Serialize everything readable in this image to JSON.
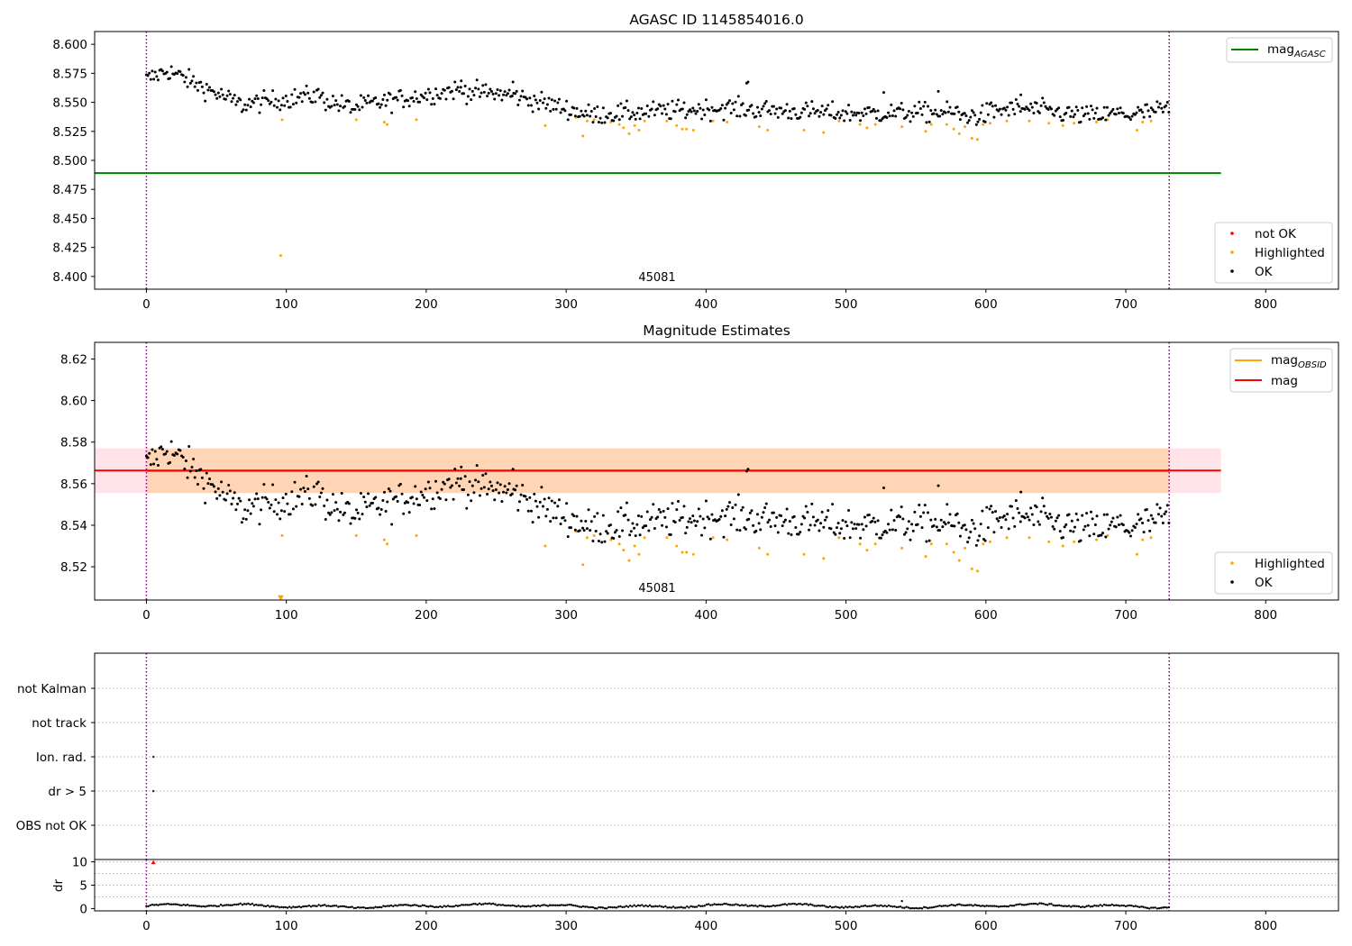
{
  "figure": {
    "title_top": "AGASC ID 1145854016.0",
    "title_mid": "Magnitude Estimates"
  },
  "chart_data": [
    {
      "type": "scatter",
      "title": "AGASC ID 1145854016.0",
      "xlim": [
        -37,
        852
      ],
      "ylim": [
        8.389,
        8.611
      ],
      "x_ticks": [
        "0",
        "100",
        "200",
        "300",
        "400",
        "500",
        "600",
        "700",
        "800"
      ],
      "y_ticks": [
        "8.400",
        "8.425",
        "8.450",
        "8.475",
        "8.500",
        "8.525",
        "8.550",
        "8.575",
        "8.600"
      ],
      "x_tick_values": [
        0,
        100,
        200,
        300,
        400,
        500,
        600,
        700,
        800
      ],
      "y_tick_values": [
        8.4,
        8.425,
        8.45,
        8.475,
        8.5,
        8.525,
        8.55,
        8.575,
        8.6
      ],
      "vlines": [
        0,
        731
      ],
      "obsid_label": "45081",
      "obsid_label_x": 365,
      "series": [
        {
          "name": "mag_AGASC",
          "style": "line",
          "color": "#008000",
          "value": 8.489,
          "x_range": [
            -37,
            768
          ]
        },
        {
          "name": "not OK",
          "style": "points",
          "color": "#ff0000",
          "points": []
        },
        {
          "name": "Highlighted",
          "style": "points",
          "color": "#ffa500",
          "points": [
            [
              96,
              8.418
            ],
            [
              97,
              8.535
            ],
            [
              150,
              8.535
            ],
            [
              170,
              8.533
            ],
            [
              172,
              8.531
            ],
            [
              193,
              8.535
            ],
            [
              285,
              8.53
            ],
            [
              307,
              8.537
            ],
            [
              312,
              8.521
            ],
            [
              315,
              8.534
            ],
            [
              320,
              8.535
            ],
            [
              332,
              8.533
            ],
            [
              338,
              8.531
            ],
            [
              341,
              8.528
            ],
            [
              345,
              8.523
            ],
            [
              349,
              8.53
            ],
            [
              352,
              8.526
            ],
            [
              356,
              8.534
            ],
            [
              372,
              8.534
            ],
            [
              379,
              8.53
            ],
            [
              383,
              8.527
            ],
            [
              386,
              8.527
            ],
            [
              391,
              8.526
            ],
            [
              405,
              8.534
            ],
            [
              415,
              8.533
            ],
            [
              438,
              8.529
            ],
            [
              444,
              8.526
            ],
            [
              470,
              8.526
            ],
            [
              484,
              8.524
            ],
            [
              495,
              8.534
            ],
            [
              510,
              8.531
            ],
            [
              515,
              8.528
            ],
            [
              521,
              8.531
            ],
            [
              525,
              8.534
            ],
            [
              540,
              8.529
            ],
            [
              557,
              8.525
            ],
            [
              561,
              8.531
            ],
            [
              572,
              8.531
            ],
            [
              577,
              8.527
            ],
            [
              581,
              8.523
            ],
            [
              585,
              8.529
            ],
            [
              590,
              8.519
            ],
            [
              594,
              8.518
            ],
            [
              598,
              8.531
            ],
            [
              603,
              8.532
            ],
            [
              615,
              8.534
            ],
            [
              631,
              8.534
            ],
            [
              645,
              8.532
            ],
            [
              655,
              8.53
            ],
            [
              663,
              8.532
            ],
            [
              679,
              8.533
            ],
            [
              687,
              8.535
            ],
            [
              708,
              8.526
            ],
            [
              712,
              8.533
            ],
            [
              718,
              8.534
            ]
          ]
        },
        {
          "name": "OK",
          "style": "points",
          "color": "#000000",
          "points": "generated"
        }
      ],
      "legend_top": [
        "mag_AGASC"
      ],
      "legend_bottom": [
        "not OK",
        "Highlighted",
        "OK"
      ],
      "legend_top_placement": "upper right",
      "legend_bottom_placement": "lower right"
    },
    {
      "type": "scatter",
      "title": "Magnitude Estimates",
      "xlim": [
        -37,
        852
      ],
      "ylim": [
        8.504,
        8.628
      ],
      "x_ticks": [
        "0",
        "100",
        "200",
        "300",
        "400",
        "500",
        "600",
        "700",
        "800"
      ],
      "y_ticks": [
        "8.52",
        "8.54",
        "8.56",
        "8.58",
        "8.60",
        "8.62"
      ],
      "x_tick_values": [
        0,
        100,
        200,
        300,
        400,
        500,
        600,
        700,
        800
      ],
      "y_tick_values": [
        8.52,
        8.54,
        8.56,
        8.58,
        8.6,
        8.62
      ],
      "vlines": [
        0,
        731
      ],
      "obsid_label": "45081",
      "obsid_label_x": 365,
      "bands": [
        {
          "y_range": [
            8.5555,
            8.577
          ],
          "x_range": [
            -37,
            768
          ],
          "color": "#ffc0cb",
          "opacity": 0.45
        },
        {
          "y_range": [
            8.5555,
            8.577
          ],
          "x_range": [
            0,
            731
          ],
          "color": "#ffa500",
          "opacity": 0.22
        }
      ],
      "series": [
        {
          "name": "mag_OBSID",
          "style": "line",
          "color": "#ffa500",
          "value": 8.566,
          "x_range": [
            0,
            731
          ]
        },
        {
          "name": "mag",
          "style": "line",
          "color": "#ff0000",
          "value": 8.5663,
          "x_range": [
            -37,
            768
          ]
        },
        {
          "name": "Highlighted",
          "style": "points",
          "color": "#ffa500",
          "points": [
            [
              97,
              8.535
            ],
            [
              150,
              8.535
            ],
            [
              170,
              8.533
            ],
            [
              172,
              8.531
            ],
            [
              193,
              8.535
            ],
            [
              285,
              8.53
            ],
            [
              307,
              8.537
            ],
            [
              312,
              8.521
            ],
            [
              315,
              8.534
            ],
            [
              320,
              8.535
            ],
            [
              332,
              8.533
            ],
            [
              338,
              8.531
            ],
            [
              341,
              8.528
            ],
            [
              345,
              8.523
            ],
            [
              349,
              8.53
            ],
            [
              352,
              8.526
            ],
            [
              356,
              8.534
            ],
            [
              372,
              8.534
            ],
            [
              379,
              8.53
            ],
            [
              383,
              8.527
            ],
            [
              386,
              8.527
            ],
            [
              391,
              8.526
            ],
            [
              405,
              8.534
            ],
            [
              415,
              8.533
            ],
            [
              438,
              8.529
            ],
            [
              444,
              8.526
            ],
            [
              470,
              8.526
            ],
            [
              484,
              8.524
            ],
            [
              495,
              8.534
            ],
            [
              510,
              8.531
            ],
            [
              515,
              8.528
            ],
            [
              521,
              8.531
            ],
            [
              525,
              8.534
            ],
            [
              540,
              8.529
            ],
            [
              557,
              8.525
            ],
            [
              561,
              8.531
            ],
            [
              572,
              8.531
            ],
            [
              577,
              8.527
            ],
            [
              581,
              8.523
            ],
            [
              585,
              8.529
            ],
            [
              590,
              8.519
            ],
            [
              594,
              8.518
            ],
            [
              598,
              8.531
            ],
            [
              603,
              8.532
            ],
            [
              615,
              8.534
            ],
            [
              631,
              8.534
            ],
            [
              645,
              8.532
            ],
            [
              655,
              8.53
            ],
            [
              663,
              8.532
            ],
            [
              679,
              8.533
            ],
            [
              687,
              8.535
            ],
            [
              708,
              8.526
            ],
            [
              712,
              8.533
            ],
            [
              718,
              8.534
            ]
          ]
        },
        {
          "name": "OK",
          "style": "points",
          "color": "#000000",
          "points": "generated"
        }
      ],
      "outlier_marker": {
        "x": 96,
        "y": 8.505,
        "color": "#ffa500"
      },
      "legend_top": [
        "mag_OBSID",
        "mag"
      ],
      "legend_bottom": [
        "Highlighted",
        "OK"
      ],
      "legend_top_placement": "upper right",
      "legend_bottom_placement": "lower right"
    },
    {
      "type": "scatter",
      "title": "",
      "xlim": [
        -37,
        852
      ],
      "categories": [
        "not Kalman",
        "not track",
        "Ion. rad.",
        "dr > 5",
        "OBS not OK"
      ],
      "vlines": [
        0,
        731
      ],
      "flag_points": [
        {
          "category": "Ion. rad.",
          "x": 5
        },
        {
          "category": "dr > 5",
          "x": 5
        }
      ]
    },
    {
      "type": "scatter",
      "title": "",
      "xlim": [
        -37,
        852
      ],
      "ylim": [
        -0.5,
        10.5
      ],
      "x_ticks": [
        "0",
        "100",
        "200",
        "300",
        "400",
        "500",
        "600",
        "700",
        "800"
      ],
      "y_ticks": [
        "0",
        "5",
        "10"
      ],
      "x_tick_values": [
        0,
        100,
        200,
        300,
        400,
        500,
        600,
        700,
        800
      ],
      "y_tick_values": [
        0,
        5,
        10
      ],
      "ylabel": "dr",
      "vlines": [
        0,
        731
      ],
      "clipped_marker": {
        "x": 5,
        "y": 9.9,
        "color": "#ff0000"
      },
      "outlier_points": [
        [
          540,
          1.6
        ]
      ]
    }
  ],
  "legend_labels": {
    "mag_agasc_main": "mag",
    "mag_agasc_sub": "AGASC",
    "not_ok": "not OK",
    "highlighted": "Highlighted",
    "ok": "OK",
    "mag_obsid_main": "mag",
    "mag_obsid_sub": "OBSID",
    "mag": "mag"
  }
}
